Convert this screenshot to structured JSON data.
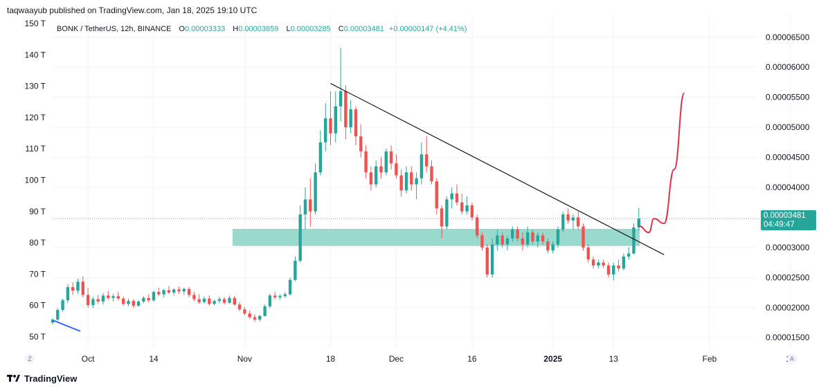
{
  "header": {
    "published_text": "taqwaayub published on TradingView.com, Jan 18, 2025 19:10 UTC"
  },
  "legend": {
    "symbol": "BONK / TetherUS, 12h, BINANCE",
    "o_label": "O",
    "o_value": "0.00003333",
    "h_label": "H",
    "h_value": "0.00003659",
    "l_label": "L",
    "l_value": "0.00003285",
    "c_label": "C",
    "c_value": "0.00003481",
    "change": "+0.00000147 (+4.41%)"
  },
  "price_tag": {
    "price": "0.00003481",
    "countdown": "04:49:47"
  },
  "brand": {
    "name": "TradingView"
  },
  "buttons": {
    "left": "Z",
    "right": "A"
  },
  "colors": {
    "up": "#26a69a",
    "down": "#ef5350",
    "zone": "#8fd5c8",
    "trendline": "#131722",
    "blue_line": "#2962ff",
    "projection": "#e0314b"
  },
  "chart_data": {
    "type": "candlestick",
    "symbol": "BONK / TetherUS",
    "timeframe": "12h",
    "exchange": "BINANCE",
    "x_ticks": [
      "Oct",
      "14",
      "Nov",
      "18",
      "Dec",
      "16",
      "2025",
      "13",
      "Feb",
      "17"
    ],
    "right_axis": {
      "ticks": [
        "0.00006500",
        "0.00006000",
        "0.00005500",
        "0.00005000",
        "0.00004500",
        "0.00004000",
        "0.00003000",
        "0.00002500",
        "0.00002000",
        "0.00001500"
      ],
      "range": [
        1.25e-05,
        6.75e-05
      ]
    },
    "left_axis": {
      "ticks": [
        "150 T",
        "140 T",
        "130 T",
        "120 T",
        "110 T",
        "100 T",
        "90 T",
        "80 T",
        "70 T",
        "60 T",
        "50 T"
      ],
      "range": [
        50,
        150
      ]
    },
    "last_close": 3.481e-05,
    "support_zone": [
      3.025e-05,
      3.31e-05
    ],
    "trendline": [
      {
        "date": "2024-11-18",
        "price": 5.73e-05
      },
      {
        "date": "2025-01-23",
        "price": 2.88e-05
      }
    ],
    "projection_path": [
      {
        "date": "2025-01-18",
        "price": 3.36e-05
      },
      {
        "date": "2025-01-20",
        "price": 3.25e-05
      },
      {
        "date": "2025-01-21",
        "price": 3.48e-05
      },
      {
        "date": "2025-01-23",
        "price": 3.4e-05
      },
      {
        "date": "2025-01-25",
        "price": 4.3e-05
      },
      {
        "date": "2025-01-27",
        "price": 5.57e-05
      }
    ],
    "candles": [
      {
        "date": "2024-09-24",
        "o": 1.75e-05,
        "h": 1.82e-05,
        "l": 1.72e-05,
        "c": 1.8e-05
      },
      {
        "date": "2024-09-25",
        "o": 1.8e-05,
        "h": 1.99e-05,
        "l": 1.78e-05,
        "c": 1.96e-05
      },
      {
        "date": "2024-09-26",
        "o": 1.96e-05,
        "h": 2.15e-05,
        "l": 1.93e-05,
        "c": 2.12e-05
      },
      {
        "date": "2024-09-27",
        "o": 2.12e-05,
        "h": 2.39e-05,
        "l": 2.08e-05,
        "c": 2.34e-05
      },
      {
        "date": "2024-09-28",
        "o": 2.34e-05,
        "h": 2.42e-05,
        "l": 2.21e-05,
        "c": 2.28e-05
      },
      {
        "date": "2024-09-29",
        "o": 2.28e-05,
        "h": 2.48e-05,
        "l": 2.23e-05,
        "c": 2.43e-05
      },
      {
        "date": "2024-09-30",
        "o": 2.43e-05,
        "h": 2.52e-05,
        "l": 2.17e-05,
        "c": 2.21e-05
      },
      {
        "date": "2024-10-01",
        "o": 2.21e-05,
        "h": 2.33e-05,
        "l": 2e-05,
        "c": 2.04e-05
      },
      {
        "date": "2024-10-02",
        "o": 2.04e-05,
        "h": 2.18e-05,
        "l": 1.99e-05,
        "c": 2.14e-05
      },
      {
        "date": "2024-10-03",
        "o": 2.14e-05,
        "h": 2.21e-05,
        "l": 2.06e-05,
        "c": 2.1e-05
      },
      {
        "date": "2024-10-04",
        "o": 2.1e-05,
        "h": 2.24e-05,
        "l": 2.05e-05,
        "c": 2.2e-05
      },
      {
        "date": "2024-10-05",
        "o": 2.2e-05,
        "h": 2.28e-05,
        "l": 2.13e-05,
        "c": 2.16e-05
      },
      {
        "date": "2024-10-06",
        "o": 2.16e-05,
        "h": 2.23e-05,
        "l": 2.1e-05,
        "c": 2.19e-05
      },
      {
        "date": "2024-10-07",
        "o": 2.19e-05,
        "h": 2.26e-05,
        "l": 2.12e-05,
        "c": 2.15e-05
      },
      {
        "date": "2024-10-08",
        "o": 2.15e-05,
        "h": 2.18e-05,
        "l": 2.03e-05,
        "c": 2.06e-05
      },
      {
        "date": "2024-10-09",
        "o": 2.06e-05,
        "h": 2.15e-05,
        "l": 2.02e-05,
        "c": 2.11e-05
      },
      {
        "date": "2024-10-10",
        "o": 2.11e-05,
        "h": 2.14e-05,
        "l": 1.99e-05,
        "c": 2.03e-05
      },
      {
        "date": "2024-10-11",
        "o": 2.03e-05,
        "h": 2.13e-05,
        "l": 2.01e-05,
        "c": 2.1e-05
      },
      {
        "date": "2024-10-12",
        "o": 2.1e-05,
        "h": 2.19e-05,
        "l": 2.07e-05,
        "c": 2.16e-05
      },
      {
        "date": "2024-10-13",
        "o": 2.16e-05,
        "h": 2.22e-05,
        "l": 2.09e-05,
        "c": 2.12e-05
      },
      {
        "date": "2024-10-14",
        "o": 2.12e-05,
        "h": 2.28e-05,
        "l": 2.1e-05,
        "c": 2.26e-05
      },
      {
        "date": "2024-10-15",
        "o": 2.26e-05,
        "h": 2.33e-05,
        "l": 2.19e-05,
        "c": 2.22e-05
      },
      {
        "date": "2024-10-16",
        "o": 2.22e-05,
        "h": 2.31e-05,
        "l": 2.17e-05,
        "c": 2.29e-05
      },
      {
        "date": "2024-10-17",
        "o": 2.29e-05,
        "h": 2.36e-05,
        "l": 2.22e-05,
        "c": 2.25e-05
      },
      {
        "date": "2024-10-18",
        "o": 2.25e-05,
        "h": 2.32e-05,
        "l": 2.2e-05,
        "c": 2.3e-05
      },
      {
        "date": "2024-10-19",
        "o": 2.3e-05,
        "h": 2.35e-05,
        "l": 2.23e-05,
        "c": 2.27e-05
      },
      {
        "date": "2024-10-20",
        "o": 2.27e-05,
        "h": 2.33e-05,
        "l": 2.21e-05,
        "c": 2.31e-05
      },
      {
        "date": "2024-10-21",
        "o": 2.31e-05,
        "h": 2.34e-05,
        "l": 2.17e-05,
        "c": 2.21e-05
      },
      {
        "date": "2024-10-22",
        "o": 2.21e-05,
        "h": 2.26e-05,
        "l": 2.11e-05,
        "c": 2.14e-05
      },
      {
        "date": "2024-10-23",
        "o": 2.14e-05,
        "h": 2.22e-05,
        "l": 2.06e-05,
        "c": 2.09e-05
      },
      {
        "date": "2024-10-24",
        "o": 2.09e-05,
        "h": 2.18e-05,
        "l": 2.07e-05,
        "c": 2.15e-05
      },
      {
        "date": "2024-10-25",
        "o": 2.15e-05,
        "h": 2.2e-05,
        "l": 2.03e-05,
        "c": 2.06e-05
      },
      {
        "date": "2024-10-26",
        "o": 2.06e-05,
        "h": 2.13e-05,
        "l": 2.04e-05,
        "c": 2.11e-05
      },
      {
        "date": "2024-10-27",
        "o": 2.11e-05,
        "h": 2.18e-05,
        "l": 2.07e-05,
        "c": 2.14e-05
      },
      {
        "date": "2024-10-28",
        "o": 2.14e-05,
        "h": 2.17e-05,
        "l": 2.05e-05,
        "c": 2.08e-05
      },
      {
        "date": "2024-10-29",
        "o": 2.08e-05,
        "h": 2.2e-05,
        "l": 2.06e-05,
        "c": 2.16e-05
      },
      {
        "date": "2024-10-30",
        "o": 2.16e-05,
        "h": 2.19e-05,
        "l": 2.03e-05,
        "c": 2.05e-05
      },
      {
        "date": "2024-10-31",
        "o": 2.05e-05,
        "h": 2.09e-05,
        "l": 1.94e-05,
        "c": 1.97e-05
      },
      {
        "date": "2024-11-01",
        "o": 1.97e-05,
        "h": 2.01e-05,
        "l": 1.87e-05,
        "c": 1.9e-05
      },
      {
        "date": "2024-11-02",
        "o": 1.9e-05,
        "h": 1.95e-05,
        "l": 1.81e-05,
        "c": 1.84e-05
      },
      {
        "date": "2024-11-03",
        "o": 1.84e-05,
        "h": 1.89e-05,
        "l": 1.76e-05,
        "c": 1.8e-05
      },
      {
        "date": "2024-11-04",
        "o": 1.8e-05,
        "h": 1.88e-05,
        "l": 1.77e-05,
        "c": 1.86e-05
      },
      {
        "date": "2024-11-05",
        "o": 1.86e-05,
        "h": 2.05e-05,
        "l": 1.85e-05,
        "c": 2.02e-05
      },
      {
        "date": "2024-11-06",
        "o": 2.02e-05,
        "h": 2.23e-05,
        "l": 1.99e-05,
        "c": 2.2e-05
      },
      {
        "date": "2024-11-07",
        "o": 2.2e-05,
        "h": 2.26e-05,
        "l": 2.13e-05,
        "c": 2.17e-05
      },
      {
        "date": "2024-11-08",
        "o": 2.17e-05,
        "h": 2.22e-05,
        "l": 2.13e-05,
        "c": 2.19e-05
      },
      {
        "date": "2024-11-09",
        "o": 2.19e-05,
        "h": 2.26e-05,
        "l": 2.16e-05,
        "c": 2.22e-05
      },
      {
        "date": "2024-11-10",
        "o": 2.22e-05,
        "h": 2.5e-05,
        "l": 2.2e-05,
        "c": 2.46e-05
      },
      {
        "date": "2024-11-11",
        "o": 2.46e-05,
        "h": 2.85e-05,
        "l": 2.44e-05,
        "c": 2.78e-05
      },
      {
        "date": "2024-11-12",
        "o": 2.78e-05,
        "h": 3.7e-05,
        "l": 2.75e-05,
        "c": 3.55e-05
      },
      {
        "date": "2024-11-13",
        "o": 3.55e-05,
        "h": 4e-05,
        "l": 3.3e-05,
        "c": 3.8e-05
      },
      {
        "date": "2024-11-14",
        "o": 3.8e-05,
        "h": 4.15e-05,
        "l": 3.35e-05,
        "c": 3.6e-05
      },
      {
        "date": "2024-11-15",
        "o": 3.6e-05,
        "h": 4.4e-05,
        "l": 3.55e-05,
        "c": 4.25e-05
      },
      {
        "date": "2024-11-16",
        "o": 4.25e-05,
        "h": 4.95e-05,
        "l": 4.2e-05,
        "c": 4.75e-05
      },
      {
        "date": "2024-11-17",
        "o": 4.75e-05,
        "h": 5.4e-05,
        "l": 4.6e-05,
        "c": 5.15e-05
      },
      {
        "date": "2024-11-18",
        "o": 5.15e-05,
        "h": 5.6e-05,
        "l": 4.7e-05,
        "c": 4.9e-05
      },
      {
        "date": "2024-11-19",
        "o": 4.9e-05,
        "h": 5.6e-05,
        "l": 4.75e-05,
        "c": 5.35e-05
      },
      {
        "date": "2024-11-20",
        "o": 5.35e-05,
        "h": 6.32e-05,
        "l": 5.1e-05,
        "c": 5.6e-05
      },
      {
        "date": "2024-11-21",
        "o": 5.6e-05,
        "h": 5.7e-05,
        "l": 4.8e-05,
        "c": 5e-05
      },
      {
        "date": "2024-11-22",
        "o": 5e-05,
        "h": 5.45e-05,
        "l": 4.9e-05,
        "c": 5.3e-05
      },
      {
        "date": "2024-11-23",
        "o": 5.3e-05,
        "h": 5.35e-05,
        "l": 4.7e-05,
        "c": 4.85e-05
      },
      {
        "date": "2024-11-24",
        "o": 4.85e-05,
        "h": 5.05e-05,
        "l": 4.5e-05,
        "c": 4.6e-05
      },
      {
        "date": "2024-11-25",
        "o": 4.6e-05,
        "h": 4.7e-05,
        "l": 4.15e-05,
        "c": 4.25e-05
      },
      {
        "date": "2024-11-26",
        "o": 4.25e-05,
        "h": 4.35e-05,
        "l": 3.95e-05,
        "c": 4.05e-05
      },
      {
        "date": "2024-11-27",
        "o": 4.05e-05,
        "h": 4.45e-05,
        "l": 4e-05,
        "c": 4.35e-05
      },
      {
        "date": "2024-11-28",
        "o": 4.35e-05,
        "h": 4.5e-05,
        "l": 4.15e-05,
        "c": 4.25e-05
      },
      {
        "date": "2024-11-29",
        "o": 4.25e-05,
        "h": 4.65e-05,
        "l": 4.2e-05,
        "c": 4.6e-05
      },
      {
        "date": "2024-11-30",
        "o": 4.6e-05,
        "h": 4.7e-05,
        "l": 4.3e-05,
        "c": 4.4e-05
      },
      {
        "date": "2024-12-01",
        "o": 4.4e-05,
        "h": 4.55e-05,
        "l": 4.15e-05,
        "c": 4.2e-05
      },
      {
        "date": "2024-12-02",
        "o": 4.2e-05,
        "h": 4.3e-05,
        "l": 3.85e-05,
        "c": 3.95e-05
      },
      {
        "date": "2024-12-03",
        "o": 3.95e-05,
        "h": 4.35e-05,
        "l": 3.9e-05,
        "c": 4.25e-05
      },
      {
        "date": "2024-12-04",
        "o": 4.25e-05,
        "h": 4.35e-05,
        "l": 3.95e-05,
        "c": 4.05e-05
      },
      {
        "date": "2024-12-05",
        "o": 4.05e-05,
        "h": 4.25e-05,
        "l": 3.8e-05,
        "c": 4.15e-05
      },
      {
        "date": "2024-12-06",
        "o": 4.15e-05,
        "h": 4.75e-05,
        "l": 4.05e-05,
        "c": 4.55e-05
      },
      {
        "date": "2024-12-07",
        "o": 4.55e-05,
        "h": 4.85e-05,
        "l": 4.25e-05,
        "c": 4.35e-05
      },
      {
        "date": "2024-12-08",
        "o": 4.35e-05,
        "h": 4.45e-05,
        "l": 4.05e-05,
        "c": 4.1e-05
      },
      {
        "date": "2024-12-09",
        "o": 4.1e-05,
        "h": 4.15e-05,
        "l": 3.55e-05,
        "c": 3.65e-05
      },
      {
        "date": "2024-12-10",
        "o": 3.65e-05,
        "h": 3.7e-05,
        "l": 3.15e-05,
        "c": 3.35e-05
      },
      {
        "date": "2024-12-11",
        "o": 3.35e-05,
        "h": 3.85e-05,
        "l": 3.3e-05,
        "c": 3.8e-05
      },
      {
        "date": "2024-12-12",
        "o": 3.8e-05,
        "h": 4e-05,
        "l": 3.65e-05,
        "c": 3.9e-05
      },
      {
        "date": "2024-12-13",
        "o": 3.9e-05,
        "h": 4.05e-05,
        "l": 3.7e-05,
        "c": 3.75e-05
      },
      {
        "date": "2024-12-14",
        "o": 3.75e-05,
        "h": 3.9e-05,
        "l": 3.55e-05,
        "c": 3.6e-05
      },
      {
        "date": "2024-12-15",
        "o": 3.6e-05,
        "h": 3.85e-05,
        "l": 3.55e-05,
        "c": 3.7e-05
      },
      {
        "date": "2024-12-16",
        "o": 3.7e-05,
        "h": 3.75e-05,
        "l": 3.45e-05,
        "c": 3.5e-05
      },
      {
        "date": "2024-12-17",
        "o": 3.5e-05,
        "h": 3.55e-05,
        "l": 3.15e-05,
        "c": 3.2e-05
      },
      {
        "date": "2024-12-18",
        "o": 3.2e-05,
        "h": 3.25e-05,
        "l": 2.95e-05,
        "c": 3e-05
      },
      {
        "date": "2024-12-19",
        "o": 3e-05,
        "h": 3.05e-05,
        "l": 2.5e-05,
        "c": 2.55e-05
      },
      {
        "date": "2024-12-20",
        "o": 2.55e-05,
        "h": 3.15e-05,
        "l": 2.5e-05,
        "c": 3.05e-05
      },
      {
        "date": "2024-12-21",
        "o": 3.05e-05,
        "h": 3.3e-05,
        "l": 2.95e-05,
        "c": 3.2e-05
      },
      {
        "date": "2024-12-22",
        "o": 3.2e-05,
        "h": 3.25e-05,
        "l": 3e-05,
        "c": 3.05e-05
      },
      {
        "date": "2024-12-23",
        "o": 3.05e-05,
        "h": 3.2e-05,
        "l": 2.95e-05,
        "c": 3.15e-05
      },
      {
        "date": "2024-12-24",
        "o": 3.15e-05,
        "h": 3.35e-05,
        "l": 3.1e-05,
        "c": 3.3e-05
      },
      {
        "date": "2024-12-25",
        "o": 3.3e-05,
        "h": 3.35e-05,
        "l": 3.1e-05,
        "c": 3.15e-05
      },
      {
        "date": "2024-12-26",
        "o": 3.15e-05,
        "h": 3.25e-05,
        "l": 2.95e-05,
        "c": 3.05e-05
      },
      {
        "date": "2024-12-27",
        "o": 3.05e-05,
        "h": 3.35e-05,
        "l": 3e-05,
        "c": 3.25e-05
      },
      {
        "date": "2024-12-28",
        "o": 3.25e-05,
        "h": 3.3e-05,
        "l": 3.05e-05,
        "c": 3.1e-05
      },
      {
        "date": "2024-12-29",
        "o": 3.1e-05,
        "h": 3.25e-05,
        "l": 3e-05,
        "c": 3.2e-05
      },
      {
        "date": "2024-12-30",
        "o": 3.2e-05,
        "h": 3.25e-05,
        "l": 3.05e-05,
        "c": 3.1e-05
      },
      {
        "date": "2024-12-31",
        "o": 3.1e-05,
        "h": 3.15e-05,
        "l": 2.9e-05,
        "c": 2.95e-05
      },
      {
        "date": "2025-01-01",
        "o": 2.95e-05,
        "h": 3.1e-05,
        "l": 2.9e-05,
        "c": 3.05e-05
      },
      {
        "date": "2025-01-02",
        "o": 3.05e-05,
        "h": 3.35e-05,
        "l": 3e-05,
        "c": 3.3e-05
      },
      {
        "date": "2025-01-03",
        "o": 3.3e-05,
        "h": 3.6e-05,
        "l": 3.25e-05,
        "c": 3.55e-05
      },
      {
        "date": "2025-01-04",
        "o": 3.55e-05,
        "h": 3.65e-05,
        "l": 3.4e-05,
        "c": 3.45e-05
      },
      {
        "date": "2025-01-05",
        "o": 3.45e-05,
        "h": 3.55e-05,
        "l": 3.3e-05,
        "c": 3.5e-05
      },
      {
        "date": "2025-01-06",
        "o": 3.5e-05,
        "h": 3.6e-05,
        "l": 3.3e-05,
        "c": 3.35e-05
      },
      {
        "date": "2025-01-07",
        "o": 3.35e-05,
        "h": 3.4e-05,
        "l": 2.95e-05,
        "c": 3e-05
      },
      {
        "date": "2025-01-08",
        "o": 3e-05,
        "h": 3.05e-05,
        "l": 2.75e-05,
        "c": 2.8e-05
      },
      {
        "date": "2025-01-09",
        "o": 2.8e-05,
        "h": 2.85e-05,
        "l": 2.65e-05,
        "c": 2.7e-05
      },
      {
        "date": "2025-01-10",
        "o": 2.7e-05,
        "h": 2.8e-05,
        "l": 2.65e-05,
        "c": 2.75e-05
      },
      {
        "date": "2025-01-11",
        "o": 2.75e-05,
        "h": 2.8e-05,
        "l": 2.65e-05,
        "c": 2.7e-05
      },
      {
        "date": "2025-01-12",
        "o": 2.7e-05,
        "h": 2.75e-05,
        "l": 2.5e-05,
        "c": 2.55e-05
      },
      {
        "date": "2025-01-13",
        "o": 2.55e-05,
        "h": 2.75e-05,
        "l": 2.45e-05,
        "c": 2.7e-05
      },
      {
        "date": "2025-01-14",
        "o": 2.7e-05,
        "h": 2.8e-05,
        "l": 2.6e-05,
        "c": 2.65e-05
      },
      {
        "date": "2025-01-15",
        "o": 2.65e-05,
        "h": 2.9e-05,
        "l": 2.62e-05,
        "c": 2.85e-05
      },
      {
        "date": "2025-01-16",
        "o": 2.85e-05,
        "h": 3e-05,
        "l": 2.8e-05,
        "c": 2.9e-05
      },
      {
        "date": "2025-01-17",
        "o": 2.9e-05,
        "h": 3.4e-05,
        "l": 2.88e-05,
        "c": 3.333e-05
      },
      {
        "date": "2025-01-18",
        "o": 3.333e-05,
        "h": 3.659e-05,
        "l": 3.285e-05,
        "c": 3.481e-05
      }
    ]
  }
}
